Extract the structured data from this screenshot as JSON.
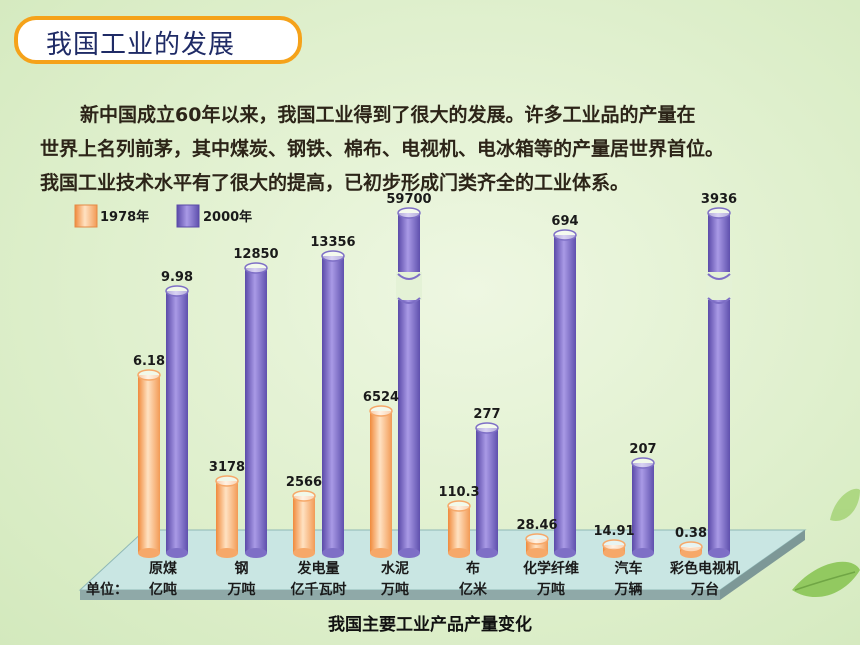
{
  "title": "我国工业的发展",
  "intro": {
    "line1": "新中国成立60年以来，我国工业得到了很大的发展。许多工业品的产量在",
    "line2": "世界上名列前茅，其中煤炭、钢铁、棉布、电视机、电冰箱等的产量居世界首位。",
    "line3": "我国工业技术水平有了很大的提高，已初步形成门类齐全的工业体系。"
  },
  "caption": "我国主要工业产品产量变化",
  "unit_prefix": "单位：",
  "colors": {
    "series_1978": "#f6a869",
    "series_2000": "#7e6fc6",
    "title_border": "#f5a21a",
    "title_text": "#1f2b66"
  },
  "chart_data": {
    "type": "bar",
    "categories": [
      "原煤",
      "钢",
      "发电量",
      "水泥",
      "布",
      "化学纤维",
      "汽车",
      "彩色电视机"
    ],
    "units": [
      "亿吨",
      "万吨",
      "亿千瓦时",
      "万吨",
      "亿米",
      "万吨",
      "万辆",
      "万台"
    ],
    "series": [
      {
        "name": "1978年",
        "values": [
          6.18,
          3178,
          2566,
          6524,
          110.3,
          28.46,
          14.91,
          0.38
        ],
        "labels": [
          "6.18",
          "3178",
          "2566",
          "6524",
          "110.3",
          "28.46",
          "14.91",
          "0.38"
        ]
      },
      {
        "name": "2000年",
        "values": [
          9.98,
          12850,
          13356,
          59700,
          277,
          694,
          207,
          3936
        ],
        "labels": [
          "9.98",
          "12850",
          "13356",
          "59700",
          "277",
          "694",
          "207",
          "3936"
        ]
      }
    ],
    "axis_break": [
      "水泥",
      "彩色电视机"
    ],
    "legend_position": "top-left",
    "grid": false
  }
}
